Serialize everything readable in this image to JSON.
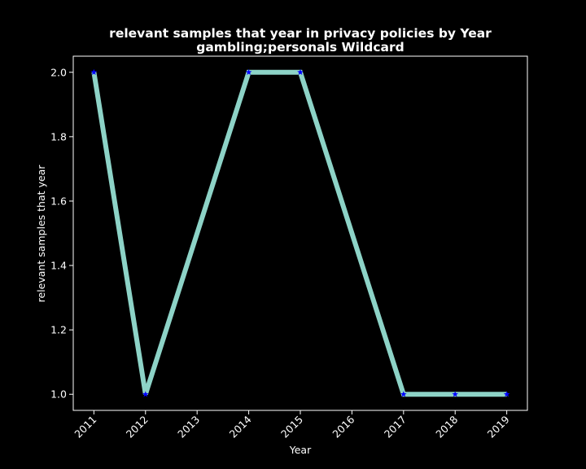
{
  "chart_data": {
    "type": "line",
    "title_line1": "relevant samples that year in privacy policies by Year",
    "title_line2": "gambling;personals Wildcard",
    "xlabel": "Year",
    "ylabel": "relevant samples that year",
    "x": [
      2011,
      2012,
      2014,
      2015,
      2017,
      2018,
      2019
    ],
    "y": [
      2.0,
      1.0,
      2.0,
      2.0,
      1.0,
      1.0,
      1.0
    ],
    "x_ticks": [
      "2011",
      "2012",
      "2013",
      "2014",
      "2015",
      "2016",
      "2017",
      "2018",
      "2019"
    ],
    "y_ticks": [
      "1.0",
      "1.2",
      "1.4",
      "1.6",
      "1.8",
      "2.0"
    ],
    "xlim": [
      2010.6,
      2019.4
    ],
    "ylim": [
      0.95,
      2.05
    ],
    "grid": false,
    "line_color": "#8dd3c7",
    "marker_color": "#0000ff",
    "marker": "star",
    "background": "#000000",
    "foreground": "#ffffff"
  }
}
